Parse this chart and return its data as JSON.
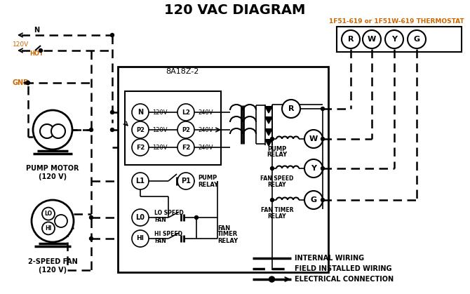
{
  "title": "120 VAC DIAGRAM",
  "title_fontsize": 14,
  "title_fontweight": "bold",
  "bg_color": "#ffffff",
  "line_color": "#000000",
  "orange_color": "#cc6600",
  "thermostat_label": "1F51-619 or 1F51W-619 THERMOSTAT",
  "control_box_label": "8A18Z-2",
  "pump_motor_label": "PUMP MOTOR\n(120 V)",
  "fan_label": "2-SPEED FAN\n(120 V)",
  "legend_internal": "INTERNAL WIRING",
  "legend_field": "FIELD INSTALLED WIRING",
  "legend_elec": "ELECTRICAL CONNECTION"
}
